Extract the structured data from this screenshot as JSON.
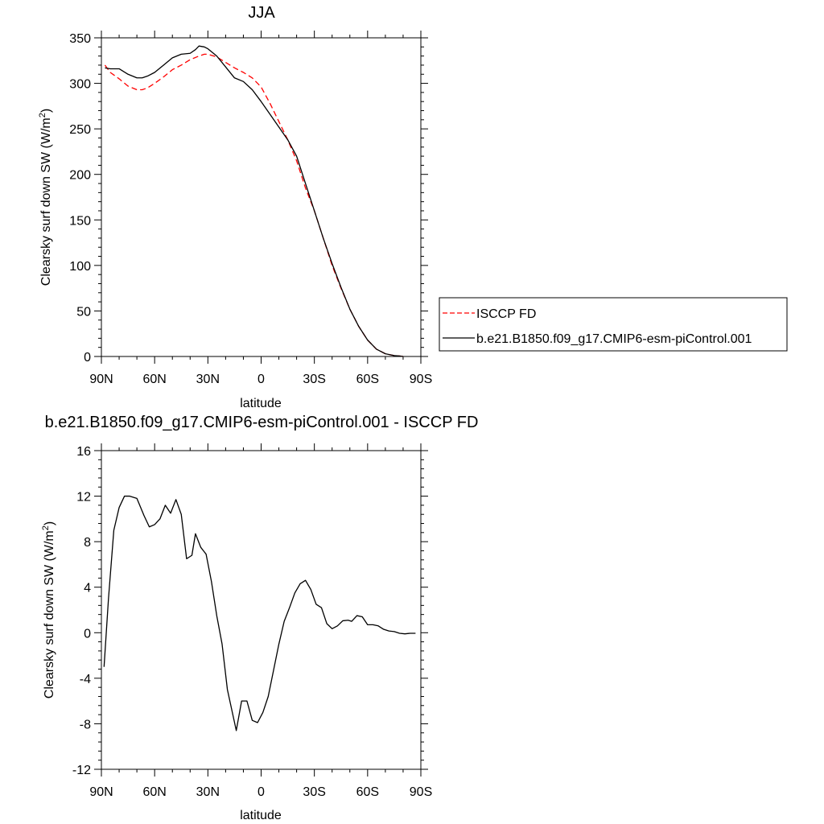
{
  "chart_data": [
    {
      "type": "line",
      "title": "JJA",
      "xlabel": "latitude",
      "ylabel": "Clearsky surf down SW (W/m²)",
      "ylabel_main": "Clearsky surf down SW (W/m",
      "ylabel_sup": "2",
      "ylabel_end": ")",
      "xlim": [
        90,
        -90
      ],
      "ylim": [
        0,
        350
      ],
      "x_ticks": [
        90,
        60,
        30,
        0,
        -30,
        -60,
        -90
      ],
      "x_tick_labels": [
        "90N",
        "60N",
        "30N",
        "0",
        "30S",
        "60S",
        "90S"
      ],
      "y_ticks": [
        0,
        50,
        100,
        150,
        200,
        250,
        300,
        350
      ],
      "y_tick_labels": [
        "0",
        "50",
        "100",
        "150",
        "200",
        "250",
        "300",
        "350"
      ],
      "legend": {
        "placement": "right",
        "entries": [
          "ISCCP FD",
          "b.e21.B1850.f09_g17.CMIP6-esm-piControl.001"
        ]
      },
      "series": [
        {
          "name": "ISCCP FD",
          "color": "#ff0000",
          "dash": true,
          "x": [
            88,
            85,
            80,
            75,
            70,
            67,
            64,
            60,
            55,
            50,
            45,
            40,
            35,
            32,
            30,
            25,
            20,
            15,
            10,
            5,
            0,
            -5,
            -10,
            -15,
            -20,
            -25,
            -30,
            -35,
            -40,
            -45,
            -50,
            -55,
            -60,
            -65,
            -70,
            -75,
            -78,
            -80
          ],
          "y": [
            320,
            312,
            305,
            297,
            293,
            293,
            295,
            300,
            307,
            315,
            320,
            326,
            330,
            332,
            332,
            329,
            323,
            317,
            312,
            306,
            296,
            278,
            258,
            238,
            215,
            185,
            160,
            130,
            100,
            75,
            52,
            33,
            18,
            8,
            3,
            1,
            0.5,
            0
          ]
        },
        {
          "name": "b.e21.B1850.f09_g17.CMIP6-esm-piControl.001",
          "color": "#000000",
          "dash": false,
          "x": [
            88,
            85,
            80,
            75,
            70,
            67,
            64,
            60,
            55,
            50,
            45,
            40,
            37,
            35,
            32,
            30,
            25,
            20,
            15,
            10,
            5,
            0,
            -5,
            -10,
            -15,
            -20,
            -25,
            -30,
            -35,
            -40,
            -45,
            -50,
            -55,
            -60,
            -65,
            -70,
            -75,
            -78,
            -80
          ],
          "y": [
            317,
            316,
            316,
            310,
            306,
            306,
            308,
            312,
            320,
            328,
            332,
            333,
            337,
            341,
            340,
            338,
            330,
            318,
            306,
            302,
            293,
            280,
            266,
            252,
            238,
            220,
            190,
            160,
            130,
            102,
            76,
            52,
            33,
            18,
            8,
            3,
            1,
            0.5,
            0
          ]
        }
      ]
    },
    {
      "type": "line",
      "title": "b.e21.B1850.f09_g17.CMIP6-esm-piControl.001 - ISCCP FD",
      "xlabel": "latitude",
      "ylabel": "Clearsky surf down SW (W/m²)",
      "ylabel_main": "Clearsky surf down SW (W/m",
      "ylabel_sup": "2",
      "ylabel_end": ")",
      "xlim": [
        90,
        -90
      ],
      "ylim": [
        -12,
        16
      ],
      "x_ticks": [
        90,
        60,
        30,
        0,
        -30,
        -60,
        -90
      ],
      "x_tick_labels": [
        "90N",
        "60N",
        "30N",
        "0",
        "30S",
        "60S",
        "90S"
      ],
      "y_ticks": [
        -12,
        -8,
        -4,
        0,
        4,
        8,
        12,
        16
      ],
      "y_tick_labels": [
        "-12",
        "-8",
        "-4",
        "0",
        "4",
        "8",
        "12",
        "16"
      ],
      "series": [
        {
          "color": "#000000",
          "dash": false,
          "x": [
            88.5,
            86,
            83,
            80,
            77,
            74,
            70,
            66,
            63,
            60,
            57,
            54,
            51,
            48,
            45,
            42,
            39,
            37,
            34,
            31,
            28,
            25,
            22,
            19,
            14,
            11,
            8,
            5,
            2,
            -1,
            -4,
            -7,
            -10,
            -13,
            -16,
            -19,
            -22,
            -25,
            -28,
            -31,
            -34,
            -37,
            -40,
            -43,
            -46,
            -49,
            -51,
            -54,
            -57,
            -60,
            -63,
            -66,
            -69,
            -72,
            -75,
            -78,
            -81,
            -84,
            -87
          ],
          "y": [
            -3,
            3,
            9,
            11,
            12,
            12,
            11.8,
            10.3,
            9.3,
            9.5,
            10,
            11.2,
            10.5,
            11.7,
            10.4,
            6.5,
            6.8,
            8.7,
            7.5,
            6.9,
            4.5,
            1.5,
            -1,
            -5,
            -8.6,
            -6,
            -6,
            -7.7,
            -7.9,
            -7,
            -5.6,
            -3.3,
            -1,
            1,
            2.2,
            3.5,
            4.3,
            4.6,
            3.8,
            2.5,
            2.2,
            0.8,
            0.35,
            0.6,
            1.05,
            1.1,
            1.0,
            1.5,
            1.4,
            0.7,
            0.7,
            0.6,
            0.3,
            0.15,
            0.1,
            -0.05,
            -0.1,
            -0.05,
            -0.05
          ]
        }
      ]
    }
  ]
}
